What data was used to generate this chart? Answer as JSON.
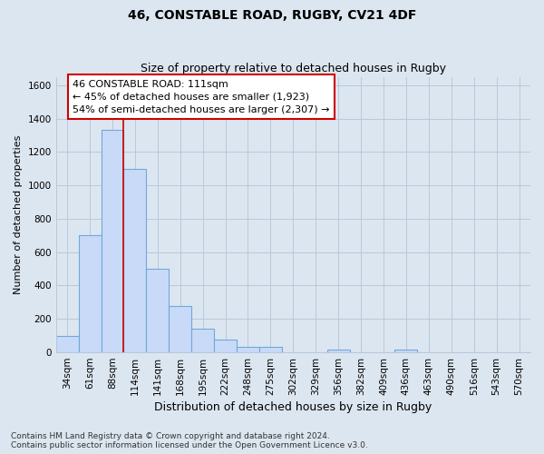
{
  "title_line1": "46, CONSTABLE ROAD, RUGBY, CV21 4DF",
  "title_line2": "Size of property relative to detached houses in Rugby",
  "xlabel": "Distribution of detached houses by size in Rugby",
  "ylabel": "Number of detached properties",
  "bar_labels": [
    "34sqm",
    "61sqm",
    "88sqm",
    "114sqm",
    "141sqm",
    "168sqm",
    "195sqm",
    "222sqm",
    "248sqm",
    "275sqm",
    "302sqm",
    "329sqm",
    "356sqm",
    "382sqm",
    "409sqm",
    "436sqm",
    "463sqm",
    "490sqm",
    "516sqm",
    "543sqm",
    "570sqm"
  ],
  "bar_values": [
    100,
    700,
    1330,
    1100,
    500,
    280,
    140,
    75,
    32,
    32,
    0,
    0,
    15,
    0,
    0,
    15,
    0,
    0,
    0,
    0,
    0
  ],
  "bar_color": "#c9daf8",
  "bar_edge_color": "#6fa8dc",
  "vline_color": "#cc0000",
  "annotation_line1": "46 CONSTABLE ROAD: 111sqm",
  "annotation_line2": "← 45% of detached houses are smaller (1,923)",
  "annotation_line3": "54% of semi-detached houses are larger (2,307) →",
  "annotation_box_facecolor": "#ffffff",
  "annotation_box_edgecolor": "#cc0000",
  "ylim": [
    0,
    1650
  ],
  "yticks": [
    0,
    200,
    400,
    600,
    800,
    1000,
    1200,
    1400,
    1600
  ],
  "grid_color": "#b8c8dc",
  "bg_color": "#dce6f0",
  "plot_bg_color": "#dce6f0",
  "footnote_line1": "Contains HM Land Registry data © Crown copyright and database right 2024.",
  "footnote_line2": "Contains public sector information licensed under the Open Government Licence v3.0.",
  "title_fontsize": 10,
  "subtitle_fontsize": 9,
  "xlabel_fontsize": 9,
  "ylabel_fontsize": 8,
  "tick_fontsize": 7.5,
  "annotation_fontsize": 8,
  "footnote_fontsize": 6.5,
  "vline_x_index": 2.5
}
